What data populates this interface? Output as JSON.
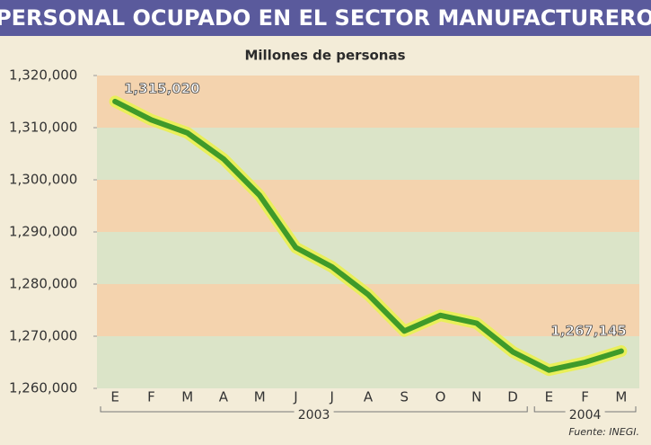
{
  "chart_data": {
    "type": "line",
    "title": "PERSONAL OCUPADO EN EL SECTOR MANUFACTURERO",
    "subtitle": "Millones de personas",
    "source": "Fuente: INEGI.",
    "categories": [
      "E",
      "F",
      "M",
      "A",
      "M",
      "J",
      "J",
      "A",
      "S",
      "O",
      "N",
      "D",
      "E",
      "F",
      "M"
    ],
    "x_groups": [
      "2003",
      "2004"
    ],
    "series": [
      {
        "name": "Personal ocupado",
        "color": "#3f9a2a",
        "values": [
          1315020,
          1311500,
          1309000,
          1304000,
          1297000,
          1287000,
          1283300,
          1278000,
          1271000,
          1274000,
          1272500,
          1267000,
          1263500,
          1265000,
          1267145
        ]
      }
    ],
    "annotations": [
      "1,315,020",
      "1,267,145"
    ],
    "ylim": [
      1260000,
      1320000
    ],
    "yticks": [
      {
        "value": 1260000,
        "label": "1,260,000"
      },
      {
        "value": 1270000,
        "label": "1,270,000"
      },
      {
        "value": 1280000,
        "label": "1,280,000"
      },
      {
        "value": 1290000,
        "label": "1,290,000"
      },
      {
        "value": 1300000,
        "label": "1,300,000"
      },
      {
        "value": 1310000,
        "label": "1,310,000"
      },
      {
        "value": 1320000,
        "label": "1,320,000"
      }
    ],
    "band_colors": [
      "#d6e3c6",
      "#f3cfa7"
    ]
  }
}
